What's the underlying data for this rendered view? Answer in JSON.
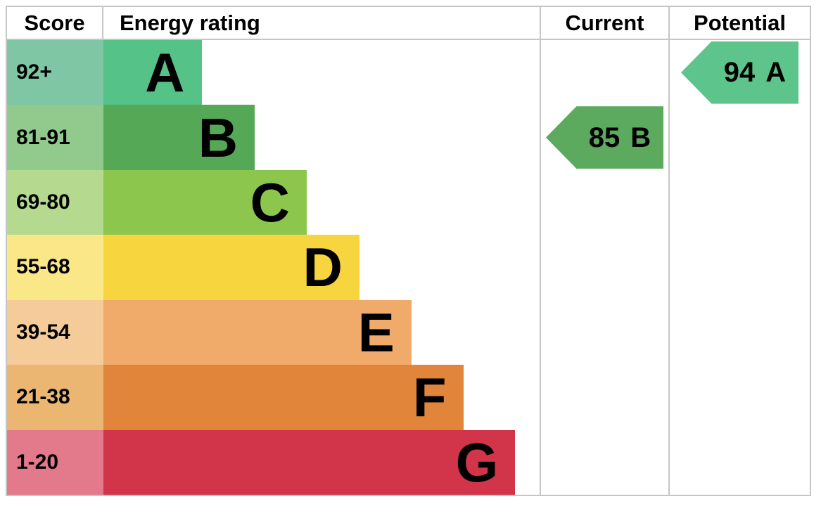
{
  "header": {
    "score": "Score",
    "energy_rating": "Energy rating",
    "current": "Current",
    "potential": "Potential"
  },
  "bands": [
    {
      "letter": "A",
      "score_range": "92+",
      "bar_color": "#55c387",
      "score_bg": "#7ec6a4",
      "bar_width_pct": 22.5
    },
    {
      "letter": "B",
      "score_range": "81-91",
      "bar_color": "#55a855",
      "score_bg": "#92c98c",
      "bar_width_pct": 34.7
    },
    {
      "letter": "C",
      "score_range": "69-80",
      "bar_color": "#8dc64d",
      "score_bg": "#b5d98e",
      "bar_width_pct": 46.6
    },
    {
      "letter": "D",
      "score_range": "55-68",
      "bar_color": "#f7d53f",
      "score_bg": "#fae788",
      "bar_width_pct": 58.7
    },
    {
      "letter": "E",
      "score_range": "39-54",
      "bar_color": "#f0aa6a",
      "score_bg": "#f5cb9a",
      "bar_width_pct": 70.6
    },
    {
      "letter": "F",
      "score_range": "21-38",
      "bar_color": "#e0853a",
      "score_bg": "#eab671",
      "bar_width_pct": 82.5
    },
    {
      "letter": "G",
      "score_range": "1-20",
      "bar_color": "#d2344a",
      "score_bg": "#e27a8c",
      "bar_width_pct": 94.4
    }
  ],
  "current": {
    "value": "85",
    "letter": "B",
    "arrow_color": "#5caa5e"
  },
  "potential": {
    "value": "94",
    "letter": "A",
    "arrow_color": "#5dc58c"
  },
  "colors": {
    "border": "#c6c6c6",
    "background": "#ffffff",
    "text": "#000000"
  },
  "chart_data": {
    "type": "bar",
    "subtype": "epc-energy-rating",
    "title": "Energy rating",
    "column_headers": [
      "Score",
      "Energy rating",
      "Current",
      "Potential"
    ],
    "categories": [
      "A",
      "B",
      "C",
      "D",
      "E",
      "F",
      "G"
    ],
    "score_ranges": [
      "92+",
      "81-91",
      "69-80",
      "55-68",
      "39-54",
      "21-38",
      "1-20"
    ],
    "bar_lengths_relative": [
      0.225,
      0.347,
      0.466,
      0.587,
      0.706,
      0.825,
      0.944
    ],
    "band_colors": [
      "#55c387",
      "#55a855",
      "#8dc64d",
      "#f7d53f",
      "#f0aa6a",
      "#e0853a",
      "#d2344a"
    ],
    "current": {
      "value": 85,
      "band": "B"
    },
    "potential": {
      "value": 94,
      "band": "A"
    },
    "legend_position": "none",
    "grid": false
  }
}
